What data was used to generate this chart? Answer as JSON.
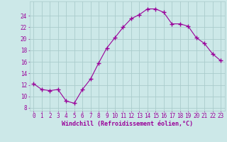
{
  "x": [
    0,
    1,
    2,
    3,
    4,
    5,
    6,
    7,
    8,
    9,
    10,
    11,
    12,
    13,
    14,
    15,
    16,
    17,
    18,
    19,
    20,
    21,
    22,
    23
  ],
  "y": [
    12.2,
    11.2,
    11.0,
    11.2,
    9.2,
    8.8,
    11.2,
    13.0,
    15.8,
    18.4,
    20.2,
    22.0,
    23.5,
    24.2,
    25.2,
    25.2,
    24.6,
    22.6,
    22.6,
    22.2,
    20.2,
    19.2,
    17.4,
    16.2
  ],
  "line_color": "#990099",
  "marker": "+",
  "marker_size": 4,
  "bg_color": "#cce8e8",
  "grid_color": "#aacccc",
  "xlabel": "Windchill (Refroidissement éolien,°C)",
  "xlabel_color": "#990099",
  "xlabel_fontsize": 6.0,
  "tick_color": "#990099",
  "tick_fontsize": 5.5,
  "ytick_start": 8,
  "ytick_end": 24,
  "ytick_step": 2,
  "ylim": [
    7.5,
    26.5
  ],
  "xlim": [
    -0.5,
    23.5
  ]
}
